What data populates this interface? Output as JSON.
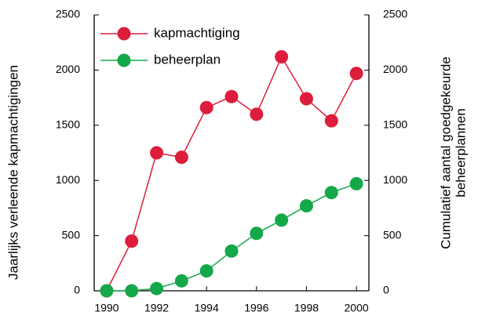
{
  "chart_data": {
    "type": "line",
    "ylabel": "Jaarlijks verleende kapmachtigingen",
    "y2label": [
      "Cumulatief aantal goedgekeurde",
      "beheerplannen"
    ],
    "x": [
      1990,
      1991,
      1992,
      1993,
      1994,
      1995,
      1996,
      1997,
      1998,
      1999,
      2000
    ],
    "series": [
      {
        "name": "kapmachtiging",
        "color": "#dc1e3c",
        "values": [
          0,
          450,
          1250,
          1210,
          1660,
          1760,
          1600,
          2120,
          1740,
          1540,
          1970
        ]
      },
      {
        "name": "beheerplan",
        "color": "#14a84a",
        "axis": "y2",
        "values": [
          0,
          0,
          20,
          90,
          180,
          360,
          520,
          640,
          770,
          890,
          970
        ]
      }
    ],
    "xlim": [
      1989.5,
      2000.5
    ],
    "xticks": [
      1990,
      1992,
      1994,
      1996,
      1998,
      2000
    ],
    "ylim": [
      0,
      2500
    ],
    "yticks": [
      0,
      500,
      1000,
      1500,
      2000,
      2500
    ],
    "y2lim": [
      0,
      2500
    ],
    "y2ticks": [
      0,
      500,
      1000,
      1500,
      2000,
      2500
    ],
    "legend": "upper left"
  }
}
